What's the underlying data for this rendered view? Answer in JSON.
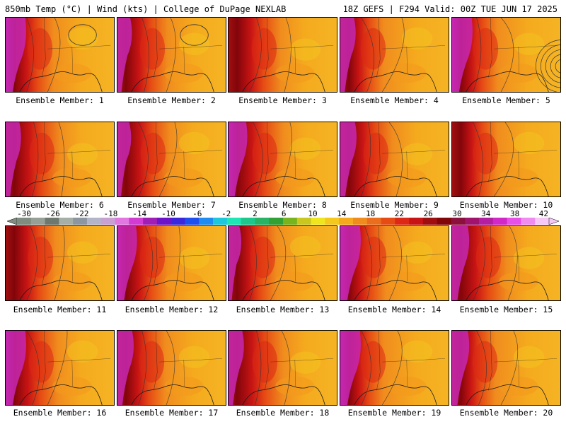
{
  "header": {
    "left": "850mb Temp (°C) | Wind (kts) | College of DuPage NEXLAB",
    "right": "18Z GEFS | F294 Valid: 00Z TUE JUN 17 2025"
  },
  "panels": [
    {
      "label": "Ensemble Member: 1"
    },
    {
      "label": "Ensemble Member: 2"
    },
    {
      "label": "Ensemble Member: 3"
    },
    {
      "label": "Ensemble Member: 4"
    },
    {
      "label": "Ensemble Member: 5"
    },
    {
      "label": "Ensemble Member: 6"
    },
    {
      "label": "Ensemble Member: 7"
    },
    {
      "label": "Ensemble Member: 8"
    },
    {
      "label": "Ensemble Member: 9"
    },
    {
      "label": "Ensemble Member: 10"
    },
    {
      "label": "Ensemble Member: 11"
    },
    {
      "label": "Ensemble Member: 12"
    },
    {
      "label": "Ensemble Member: 13"
    },
    {
      "label": "Ensemble Member: 14"
    },
    {
      "label": "Ensemble Member: 15"
    },
    {
      "label": "Ensemble Member: 16"
    },
    {
      "label": "Ensemble Member: 17"
    },
    {
      "label": "Ensemble Member: 18"
    },
    {
      "label": "Ensemble Member: 19"
    },
    {
      "label": "Ensemble Member: 20"
    }
  ],
  "colorbar": {
    "labels": [
      "-30",
      "-26",
      "-22",
      "-18",
      "-14",
      "-10",
      "-6",
      "-2",
      "2",
      "6",
      "10",
      "14",
      "18",
      "22",
      "26",
      "30",
      "34",
      "38",
      "42"
    ],
    "colors": [
      "#7f8c7f",
      "#96a096",
      "#6e786e",
      "#a5afa5",
      "#8c96a0",
      "#b4b4c8",
      "#c8a0d2",
      "#e178e1",
      "#d23cd2",
      "#a01eb4",
      "#6e14c8",
      "#3c28dc",
      "#1e50f0",
      "#1e8cf0",
      "#1ec8dc",
      "#1ee6b4",
      "#1ec88c",
      "#28b464",
      "#32a032",
      "#78b41e",
      "#c8c81e",
      "#f0e61e",
      "#f5c81e",
      "#f5aa1e",
      "#f08c1e",
      "#eb6e1e",
      "#e64b14",
      "#dc2814",
      "#c81414",
      "#a00f0f",
      "#82050a",
      "#8c0f3c",
      "#a0146e",
      "#b41ea0",
      "#d228c8",
      "#e650e6",
      "#f08cf0",
      "#f5c8f5"
    ]
  }
}
